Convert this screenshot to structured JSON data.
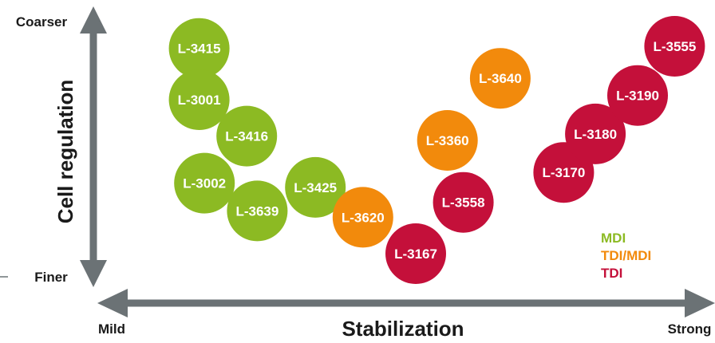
{
  "chart_data": {
    "type": "scatter",
    "title": "",
    "xlabel": "Stabilization",
    "ylabel": "Cell regulation",
    "x_ends": {
      "low": "Mild",
      "high": "Strong"
    },
    "y_ends": {
      "low": "Finer",
      "high": "Coarser"
    },
    "colors": {
      "MDI": "#8cba23",
      "TDI/MDI": "#f28a0c",
      "TDI": "#c4103a"
    },
    "legend": [
      "MDI",
      "TDI/MDI",
      "TDI"
    ],
    "legend_position": "lower-right",
    "grid": false,
    "points": [
      {
        "label": "L-3415",
        "group": "MDI",
        "x": 0.09,
        "y": 0.96
      },
      {
        "label": "L-3001",
        "group": "MDI",
        "x": 0.09,
        "y": 0.72
      },
      {
        "label": "L-3416",
        "group": "MDI",
        "x": 0.18,
        "y": 0.55
      },
      {
        "label": "L-3002",
        "group": "MDI",
        "x": 0.1,
        "y": 0.33
      },
      {
        "label": "L-3639",
        "group": "MDI",
        "x": 0.2,
        "y": 0.2
      },
      {
        "label": "L-3425",
        "group": "MDI",
        "x": 0.31,
        "y": 0.31
      },
      {
        "label": "L-3620",
        "group": "TDI/MDI",
        "x": 0.4,
        "y": 0.17
      },
      {
        "label": "L-3167",
        "group": "TDI",
        "x": 0.5,
        "y": 0.0
      },
      {
        "label": "L-3558",
        "group": "TDI",
        "x": 0.59,
        "y": 0.24
      },
      {
        "label": "L-3360",
        "group": "TDI/MDI",
        "x": 0.56,
        "y": 0.53
      },
      {
        "label": "L-3640",
        "group": "TDI/MDI",
        "x": 0.66,
        "y": 0.82
      },
      {
        "label": "L-3170",
        "group": "TDI",
        "x": 0.78,
        "y": 0.38
      },
      {
        "label": "L-3180",
        "group": "TDI",
        "x": 0.84,
        "y": 0.56
      },
      {
        "label": "L-3190",
        "group": "TDI",
        "x": 0.92,
        "y": 0.74
      },
      {
        "label": "L-3555",
        "group": "TDI",
        "x": 0.99,
        "y": 0.97
      }
    ]
  }
}
